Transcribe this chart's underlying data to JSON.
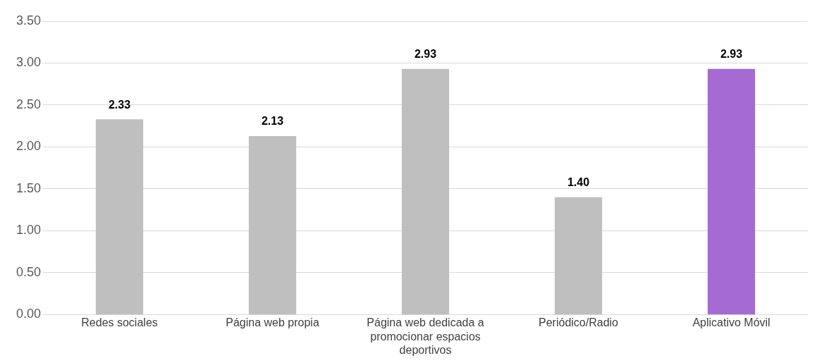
{
  "chart_data": {
    "type": "bar",
    "categories": [
      "Redes sociales",
      "Página web propia",
      "Página web dedicada a promocionar espacios deportivos",
      "Periódico/Radio",
      "Aplicativo Móvil"
    ],
    "values": [
      2.33,
      2.13,
      2.93,
      1.4,
      2.93
    ],
    "colors": [
      "#bfbfbf",
      "#bfbfbf",
      "#bfbfbf",
      "#bfbfbf",
      "#a66bd3"
    ],
    "value_labels": [
      "2.33",
      "2.13",
      "2.93",
      "1.40",
      "2.93"
    ],
    "ylim": [
      0,
      3.5
    ],
    "yticks": [
      {
        "value": 0,
        "label": "0.00"
      },
      {
        "value": 0.5,
        "label": "0.50"
      },
      {
        "value": 1,
        "label": "1.00"
      },
      {
        "value": 1.5,
        "label": "1.50"
      },
      {
        "value": 2,
        "label": "2.00"
      },
      {
        "value": 2.5,
        "label": "2.50"
      },
      {
        "value": 3,
        "label": "3.00"
      },
      {
        "value": 3.5,
        "label": "3.50"
      }
    ],
    "grid": "y"
  }
}
